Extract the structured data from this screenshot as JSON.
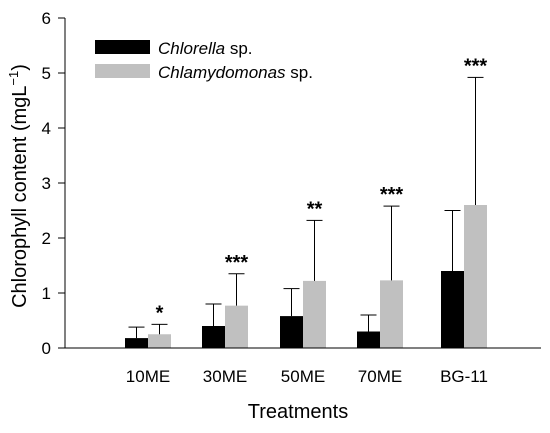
{
  "chart_data": {
    "type": "bar",
    "title": "",
    "xlabel": "Treatments",
    "ylabel": "Chlorophyll content (mgL",
    "ylabel_sup": "−1",
    "ylabel_close": ")",
    "ylim": [
      0,
      6
    ],
    "yticks": [
      "0",
      "1",
      "2",
      "3",
      "4",
      "5",
      "6"
    ],
    "categories": [
      "10ME",
      "30ME",
      "50ME",
      "70ME",
      "BG-11"
    ],
    "series": [
      {
        "name": "Chlorella sp.",
        "name_italic": "Chlorella",
        "name_rest": " sp.",
        "color": "#000000",
        "values": [
          0.18,
          0.4,
          0.58,
          0.3,
          1.4
        ],
        "errors": [
          0.2,
          0.4,
          0.5,
          0.3,
          1.1
        ]
      },
      {
        "name": "Chlamydomonas sp.",
        "name_italic": "Chlamydomonas",
        "name_rest": " sp.",
        "color": "#c0c0c0",
        "values": [
          0.25,
          0.77,
          1.22,
          1.23,
          2.6
        ],
        "errors": [
          0.18,
          0.58,
          1.1,
          1.35,
          2.32
        ]
      }
    ],
    "significance": [
      "*",
      "***",
      "**",
      "***",
      "***"
    ],
    "grid": false,
    "legend_position": "top-left"
  }
}
